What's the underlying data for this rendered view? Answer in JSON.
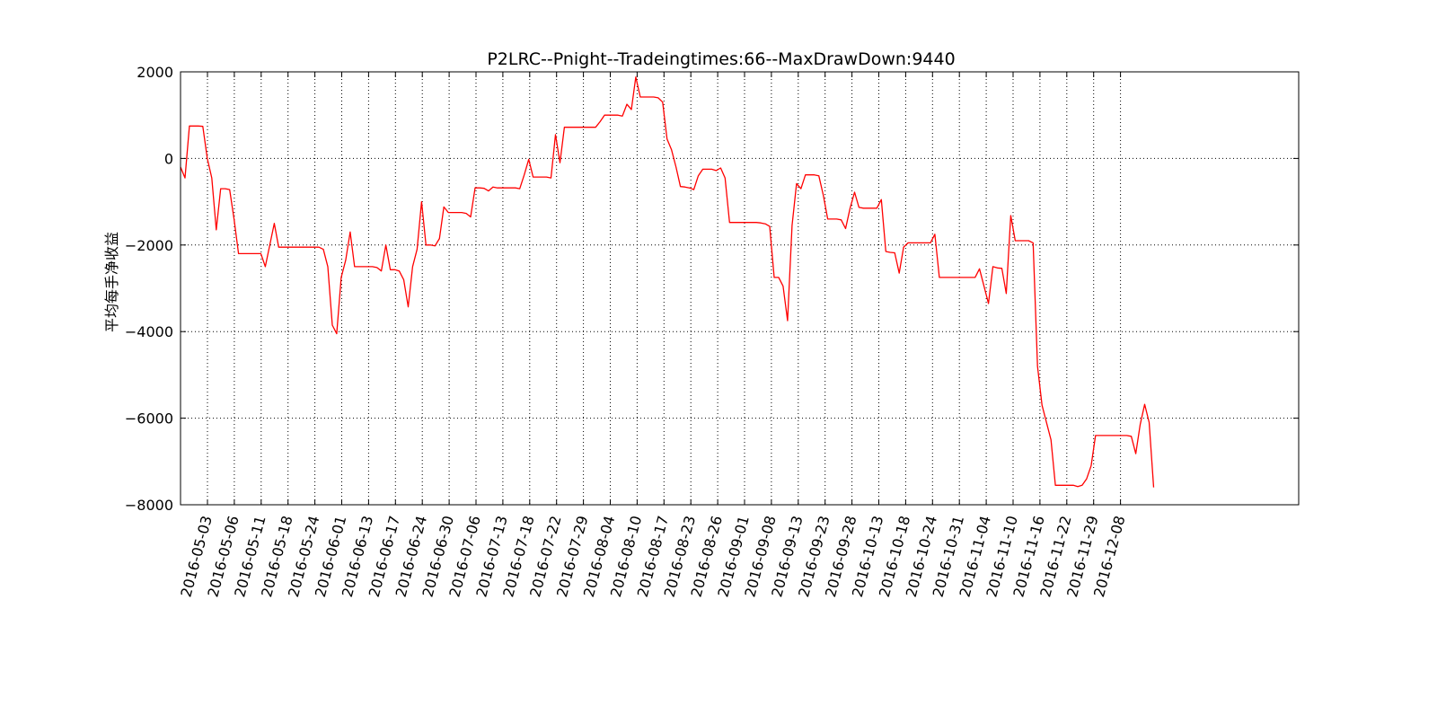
{
  "chart_data": {
    "type": "line",
    "title": "P2LRC--Pnight--Tradeingtimes:66--MaxDrawDown:9440",
    "xlabel": "",
    "ylabel": "平均每手净收益",
    "ylim": [
      -8000,
      2000
    ],
    "yticks": [
      -8000,
      -6000,
      -4000,
      -2000,
      0,
      2000
    ],
    "ytick_labels": [
      "−8000",
      "−6000",
      "−4000",
      "−2000",
      "0",
      "2000"
    ],
    "grid": true,
    "line_color": "#ff0000",
    "xticks": [
      "2016-05-03",
      "2016-05-06",
      "2016-05-11",
      "2016-05-18",
      "2016-05-24",
      "2016-06-01",
      "2016-06-13",
      "2016-06-17",
      "2016-06-24",
      "2016-06-30",
      "2016-07-06",
      "2016-07-13",
      "2016-07-18",
      "2016-07-22",
      "2016-07-29",
      "2016-08-04",
      "2016-08-10",
      "2016-08-17",
      "2016-08-23",
      "2016-08-26",
      "2016-09-01",
      "2016-09-08",
      "2016-09-13",
      "2016-09-23",
      "2016-09-28",
      "2016-10-13",
      "2016-10-18",
      "2016-10-24",
      "2016-10-31",
      "2016-11-04",
      "2016-11-10",
      "2016-11-16",
      "2016-11-22",
      "2016-11-29",
      "2016-12-08"
    ],
    "series": [
      {
        "values": [
          -200,
          -450,
          750,
          750,
          750,
          740,
          0,
          -450,
          -1650,
          -700,
          -700,
          -720,
          -1400,
          -2200,
          -2200,
          -2200,
          -2200,
          -2200,
          -2200,
          -2500,
          -2000,
          -1500,
          -2050,
          -2050,
          -2050,
          -2050,
          -2050,
          -2050,
          -2050,
          -2050,
          -2050,
          -2050,
          -2100,
          -2500,
          -3850,
          -4050,
          -2750,
          -2350,
          -1700,
          -2500,
          -2500,
          -2500,
          -2500,
          -2500,
          -2520,
          -2600,
          -2000,
          -2570,
          -2570,
          -2600,
          -2800,
          -3430,
          -2500,
          -2100,
          -1000,
          -2000,
          -2000,
          -2020,
          -1850,
          -1120,
          -1250,
          -1250,
          -1250,
          -1250,
          -1270,
          -1350,
          -680,
          -680,
          -690,
          -750,
          -660,
          -680,
          -680,
          -680,
          -680,
          -680,
          -700,
          -380,
          -20,
          -430,
          -430,
          -430,
          -430,
          -450,
          550,
          -100,
          720,
          720,
          720,
          720,
          720,
          720,
          720,
          720,
          850,
          1000,
          1000,
          1000,
          1000,
          980,
          1250,
          1130,
          1880,
          1420,
          1420,
          1420,
          1420,
          1400,
          1300,
          450,
          200,
          -200,
          -650,
          -660,
          -680,
          -720,
          -400,
          -250,
          -250,
          -250,
          -280,
          -220,
          -450,
          -1480,
          -1480,
          -1480,
          -1480,
          -1480,
          -1480,
          -1480,
          -1490,
          -1510,
          -1570,
          -2750,
          -2750,
          -2950,
          -3750,
          -1550,
          -580,
          -700,
          -380,
          -380,
          -380,
          -400,
          -850,
          -1400,
          -1400,
          -1400,
          -1420,
          -1620,
          -1150,
          -780,
          -1130,
          -1150,
          -1150,
          -1150,
          -1150,
          -950,
          -2150,
          -2170,
          -2180,
          -2650,
          -2050,
          -1950,
          -1950,
          -1950,
          -1950,
          -1950,
          -1950,
          -1750,
          -2750,
          -2750,
          -2750,
          -2750,
          -2750,
          -2750,
          -2750,
          -2750,
          -2750,
          -2550,
          -2950,
          -3350,
          -2500,
          -2530,
          -2540,
          -3120,
          -1320,
          -1900,
          -1900,
          -1900,
          -1900,
          -1950,
          -4800,
          -5700,
          -6100,
          -6500,
          -7550,
          -7550,
          -7550,
          -7550,
          -7550,
          -7580,
          -7550,
          -7400,
          -7100,
          -6400,
          -6400,
          -6400,
          -6400,
          -6400,
          -6400,
          -6400,
          -6400,
          -6420,
          -6820,
          -6150,
          -5680,
          -6100,
          -7600
        ]
      }
    ]
  }
}
